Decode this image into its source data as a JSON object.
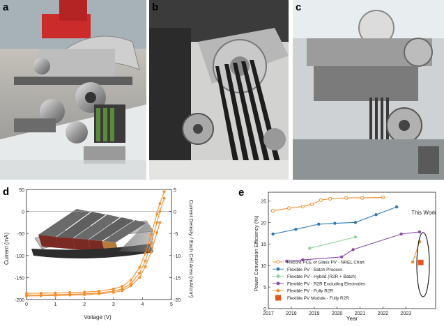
{
  "panels": {
    "a": {
      "label": "a"
    },
    "b": {
      "label": "b"
    },
    "c": {
      "label": "c"
    },
    "d": {
      "label": "d"
    },
    "e": {
      "label": "e"
    }
  },
  "colors": {
    "orange": "#f28c28",
    "blue": "#2b78b5",
    "green": "#8fd49a",
    "purple": "#8a4aa8",
    "red_orange": "#e6541b"
  },
  "chart_data": [
    {
      "type": "line",
      "panel": "d",
      "xlabel": "Voltage (V)",
      "ylabel": "Current (mA)",
      "y2label": "Current Density / Each Cell Area (mA/cm²)",
      "xlim": [
        0,
        5
      ],
      "ylim": [
        -200,
        50
      ],
      "y2lim": [
        -20,
        5
      ],
      "xticks": [
        "0",
        "1",
        "2",
        "3",
        "4",
        "5"
      ],
      "yticks": [
        "50",
        "0",
        "-50",
        "-100",
        "-150",
        "-200"
      ],
      "y2ticks": [
        "5",
        "0",
        "-5",
        "-10",
        "-15",
        "-20"
      ],
      "grid": false,
      "series": [
        {
          "x": [
            0,
            0.5,
            1,
            1.5,
            2,
            2.5,
            3,
            3.3,
            3.6,
            3.9,
            4.1,
            4.3,
            4.5,
            4.6,
            4.75
          ],
          "values": [
            -190,
            -189.5,
            -189,
            -188,
            -187,
            -185,
            -181,
            -176,
            -164,
            -140,
            -112,
            -72,
            -25,
            0,
            30
          ]
        },
        {
          "x": [
            0,
            0.5,
            1,
            1.5,
            2,
            2.5,
            3,
            3.3,
            3.6,
            3.9,
            4.1,
            4.3,
            4.5,
            4.6,
            4.75
          ],
          "values": [
            -186,
            -185.5,
            -185,
            -184,
            -183,
            -181,
            -176,
            -170,
            -156,
            -127,
            -95,
            -52,
            -5,
            18,
            45
          ]
        },
        {
          "x": [
            0,
            0.5,
            1,
            1.5,
            2,
            2.5,
            3,
            3.3,
            3.6,
            3.9,
            4.1,
            4.3,
            4.5,
            4.6
          ],
          "values": [
            -192,
            -191.5,
            -191,
            -190,
            -189,
            -187,
            -184,
            -180,
            -169,
            -150,
            -125,
            -92,
            -48,
            -25
          ]
        }
      ]
    },
    {
      "type": "line",
      "panel": "e",
      "xlabel": "Year",
      "ylabel": "Power Conversion Efficiency (%)",
      "xlim": [
        2017,
        2024.3
      ],
      "ylim": [
        0,
        27
      ],
      "xticks": [
        "2017",
        "2018",
        "2019",
        "2020",
        "2021",
        "2022",
        "2023"
      ],
      "yticks": [
        "0",
        "5",
        "10",
        "15",
        "20",
        "25"
      ],
      "annotation": "This Work",
      "legend_position": "bottom-left",
      "series": [
        {
          "name": "Record PCE of Glass PV - NREL Chart",
          "color": "#f28c28",
          "marker": "open-circle",
          "x": [
            2017.2,
            2017.9,
            2018.5,
            2018.9,
            2019.3,
            2019.7,
            2020.4,
            2021.1,
            2022.0
          ],
          "values": [
            22.7,
            23.3,
            23.7,
            24.2,
            25.2,
            25.5,
            25.7,
            25.7,
            25.8
          ]
        },
        {
          "name": "Flexible PV - Batch Process",
          "color": "#2b78b5",
          "marker": "circle",
          "x": [
            2017.2,
            2018.2,
            2019.2,
            2019.9,
            2020.8,
            2021.7,
            2022.6
          ],
          "values": [
            17.3,
            18.4,
            19.6,
            19.8,
            20.0,
            21.8,
            23.6
          ]
        },
        {
          "name": "Flexible PV - Hybrid (R2R + Batch)",
          "color": "#8fd49a",
          "marker": "circle",
          "x": [
            2018.8,
            2020.8
          ],
          "values": [
            14.0,
            16.6
          ]
        },
        {
          "name": "Flexible PV - R2R Excluding Electrodes",
          "color": "#8a4aa8",
          "marker": "circle",
          "x": [
            2017.8,
            2018.5,
            2020.2,
            2020.7,
            2022.8,
            2023.6
          ],
          "values": [
            11.0,
            11.3,
            12.0,
            13.7,
            17.3,
            17.8
          ]
        },
        {
          "name": "Flexible PV - Fully R2R",
          "color": "#f28c28",
          "marker": "circle",
          "x": [
            2023.3,
            2023.6
          ],
          "values": [
            10.8,
            15.5
          ]
        },
        {
          "name": "Flexible PV Module - Fully R2R",
          "color": "#e6541b",
          "marker": "square",
          "x": [
            2023.65
          ],
          "values": [
            10.7
          ]
        }
      ]
    }
  ]
}
